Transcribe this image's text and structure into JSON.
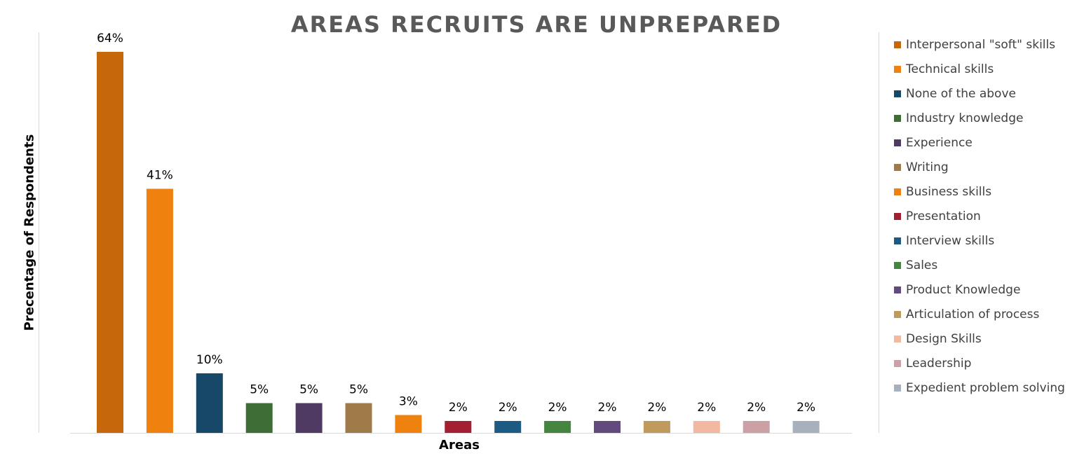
{
  "chart_data": {
    "type": "bar",
    "title": "AREAS RECRUITS  ARE UNPREPARED",
    "xlabel": "Areas",
    "ylabel": "Precentage of Respondents",
    "ylim": [
      0,
      70
    ],
    "grid": false,
    "legend_position": "right",
    "categories": [
      "Interpersonal \"soft\" skills",
      "Technical skills",
      "None of the above",
      "Industry knowledge",
      "Experience",
      "Writing",
      "Business skills",
      "Presentation",
      "Interview skills",
      "Sales",
      "Product Knowledge",
      "Articulation of process",
      "Design Skills",
      "Leadership",
      "Expedient problem solving"
    ],
    "values": [
      64,
      41,
      10,
      5,
      5,
      5,
      3,
      2,
      2,
      2,
      2,
      2,
      2,
      2,
      2
    ],
    "data_labels": [
      "64%",
      "41%",
      "10%",
      "5%",
      "5%",
      "5%",
      "3%",
      "2%",
      "2%",
      "2%",
      "2%",
      "2%",
      "2%",
      "2%",
      "2%"
    ],
    "colors": [
      "#c5670a",
      "#ef820e",
      "#17486a",
      "#3e6d35",
      "#4f3a63",
      "#a07b4a",
      "#ef820e",
      "#a32033",
      "#1e5b83",
      "#468540",
      "#62497e",
      "#c0995c",
      "#f2b9a0",
      "#cba1a5",
      "#a6b1bd"
    ]
  }
}
